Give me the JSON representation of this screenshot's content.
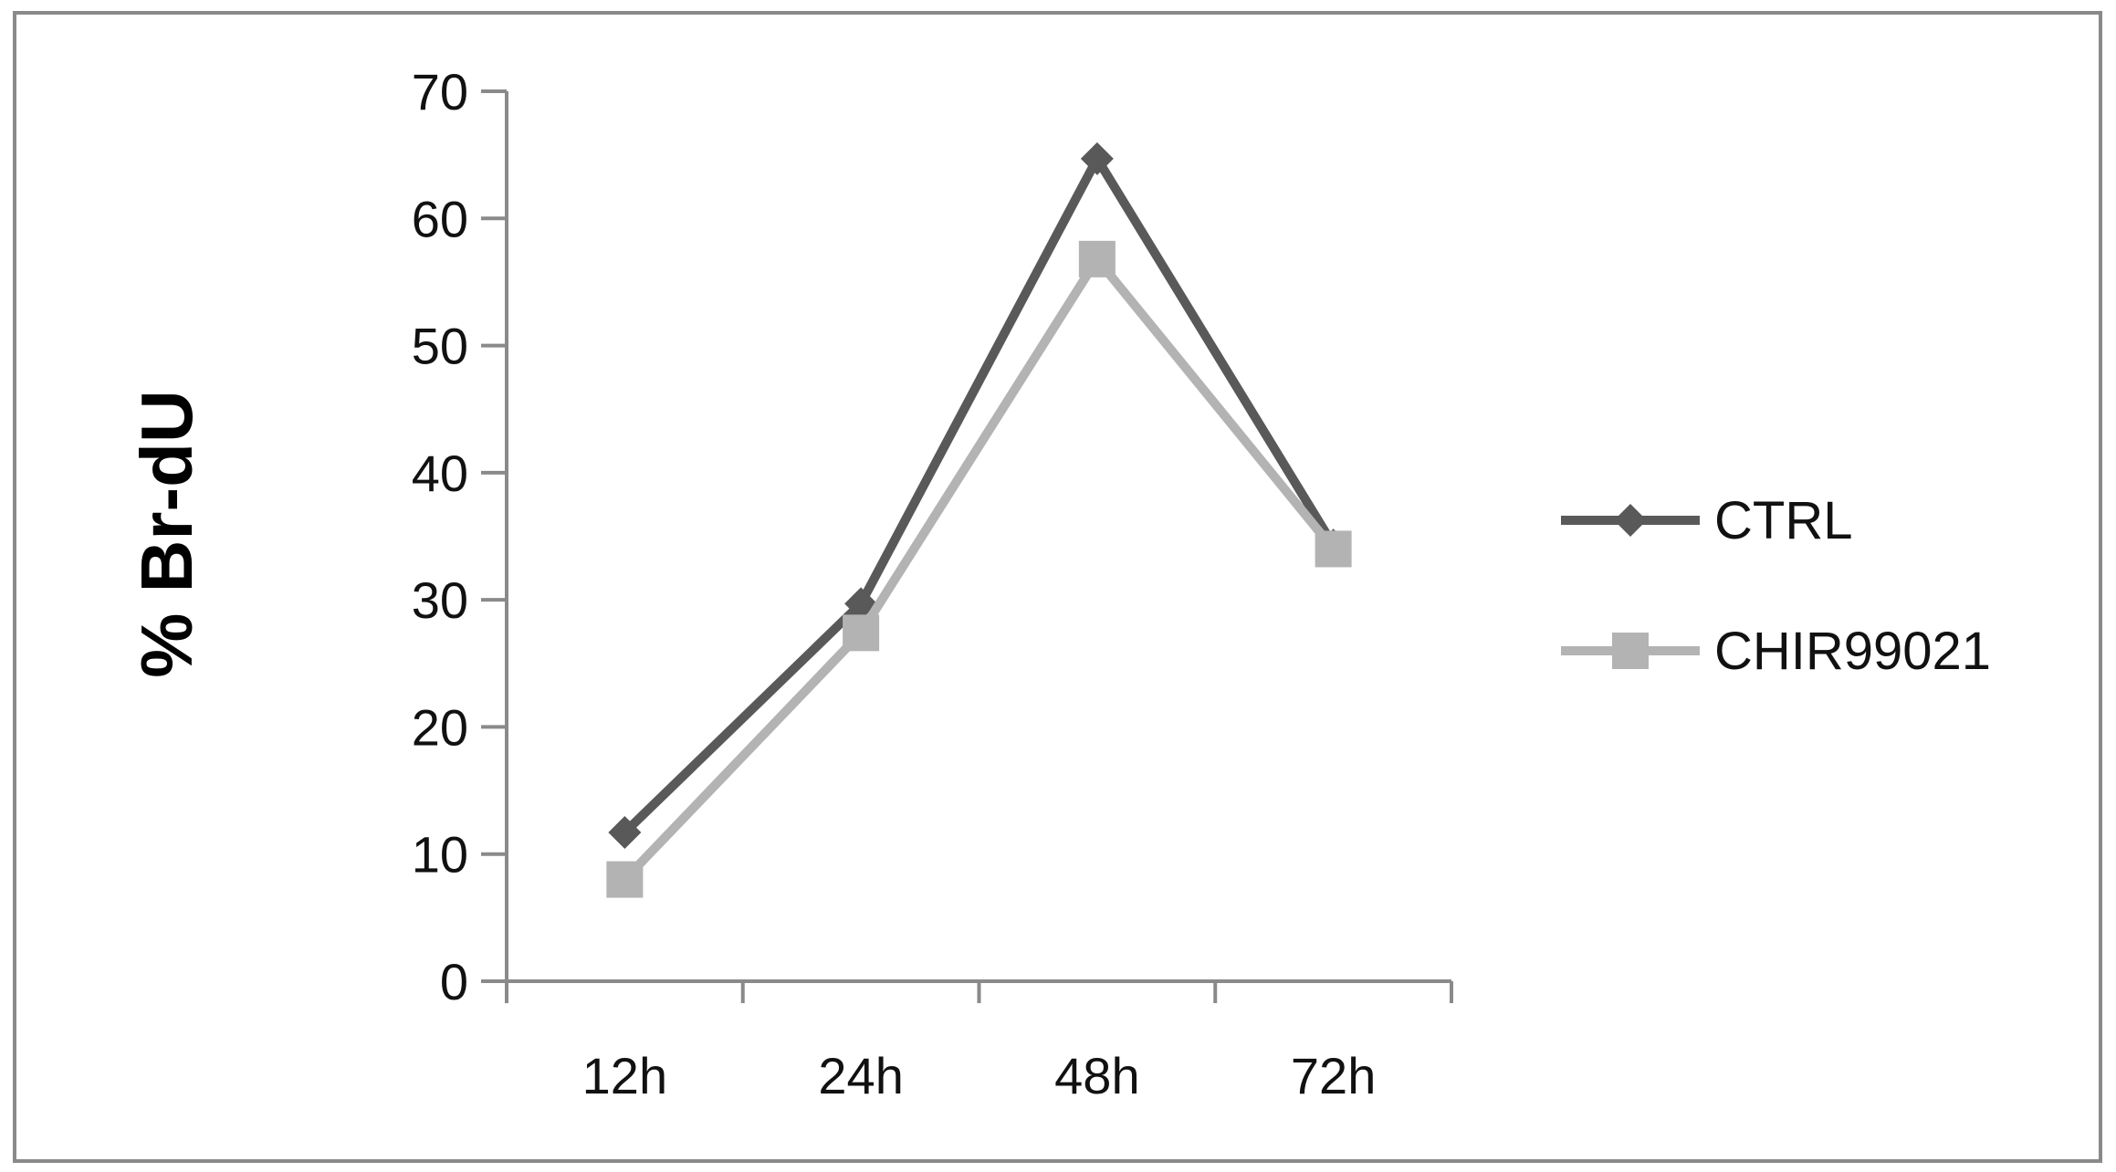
{
  "chart_data": {
    "type": "line",
    "categories": [
      "12h",
      "24h",
      "48h",
      "72h"
    ],
    "series": [
      {
        "name": "CTRL",
        "values": [
          11.7,
          29.7,
          64.7,
          34.3
        ],
        "color": "#595959",
        "marker": "diamond"
      },
      {
        "name": "CHIR99021",
        "values": [
          8.0,
          27.4,
          56.8,
          34.0
        ],
        "color": "#b3b3b3",
        "marker": "square"
      }
    ],
    "title": "",
    "xlabel": "",
    "ylabel": "% Br-dU",
    "ylim": [
      0,
      70
    ],
    "yticks": [
      "0",
      "10",
      "20",
      "30",
      "40",
      "50",
      "60",
      "70"
    ],
    "grid": false,
    "legend_position": "right"
  }
}
